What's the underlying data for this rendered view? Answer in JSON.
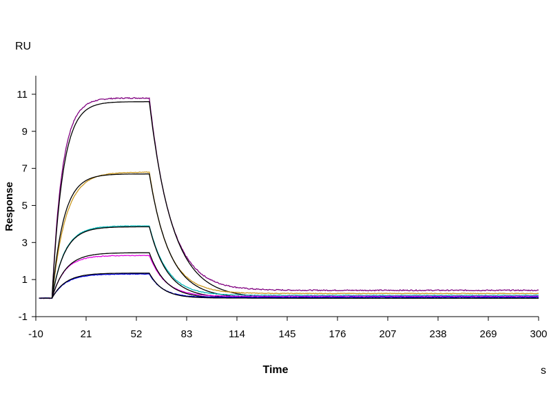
{
  "chart_data": {
    "type": "line",
    "title": "",
    "unit_y": "RU",
    "unit_x": "s",
    "xlabel": "Time",
    "ylabel": "Response",
    "xlim": [
      -10,
      300
    ],
    "ylim": [
      -1,
      12
    ],
    "x_ticks": [
      -10,
      21,
      52,
      83,
      114,
      145,
      176,
      207,
      238,
      269,
      300
    ],
    "y_ticks": [
      -1,
      1,
      3,
      5,
      7,
      9,
      11
    ],
    "x_tick_labels": [
      "-10",
      "21",
      "52",
      "83",
      "114",
      "145",
      "176",
      "207",
      "238",
      "269",
      "300"
    ],
    "y_tick_labels": [
      "-1",
      "1",
      "3",
      "5",
      "7",
      "9",
      "11"
    ],
    "grid": false,
    "association_start": 0,
    "dissociation_start": 60,
    "series": [
      {
        "color": "#800080",
        "equilibrium": 10.8,
        "ka": 0.16,
        "kd": 0.075,
        "offset": 0.42,
        "noise": 0.06
      },
      {
        "color": "#000000",
        "equilibrium": 10.6,
        "ka": 0.15,
        "kd": 0.07,
        "offset": 0.0,
        "noise": 0.0
      },
      {
        "color": "#c8961e",
        "equilibrium": 6.8,
        "ka": 0.12,
        "kd": 0.085,
        "offset": 0.25,
        "noise": 0.03
      },
      {
        "color": "#000000",
        "equilibrium": 6.7,
        "ka": 0.14,
        "kd": 0.08,
        "offset": 0.0,
        "noise": 0.0
      },
      {
        "color": "#00b4b4",
        "equilibrium": 3.9,
        "ka": 0.13,
        "kd": 0.09,
        "offset": 0.15,
        "noise": 0.03
      },
      {
        "color": "#000000",
        "equilibrium": 3.85,
        "ka": 0.13,
        "kd": 0.09,
        "offset": 0.0,
        "noise": 0.0
      },
      {
        "color": "#e000e0",
        "equilibrium": 2.3,
        "ka": 0.13,
        "kd": 0.1,
        "offset": 0.1,
        "noise": 0.03
      },
      {
        "color": "#000000",
        "equilibrium": 2.45,
        "ka": 0.12,
        "kd": 0.1,
        "offset": 0.0,
        "noise": 0.0
      },
      {
        "color": "#0000e0",
        "equilibrium": 1.3,
        "ka": 0.12,
        "kd": 0.12,
        "offset": 0.05,
        "noise": 0.03
      },
      {
        "color": "#000000",
        "equilibrium": 1.35,
        "ka": 0.12,
        "kd": 0.12,
        "offset": 0.0,
        "noise": 0.0
      }
    ]
  }
}
